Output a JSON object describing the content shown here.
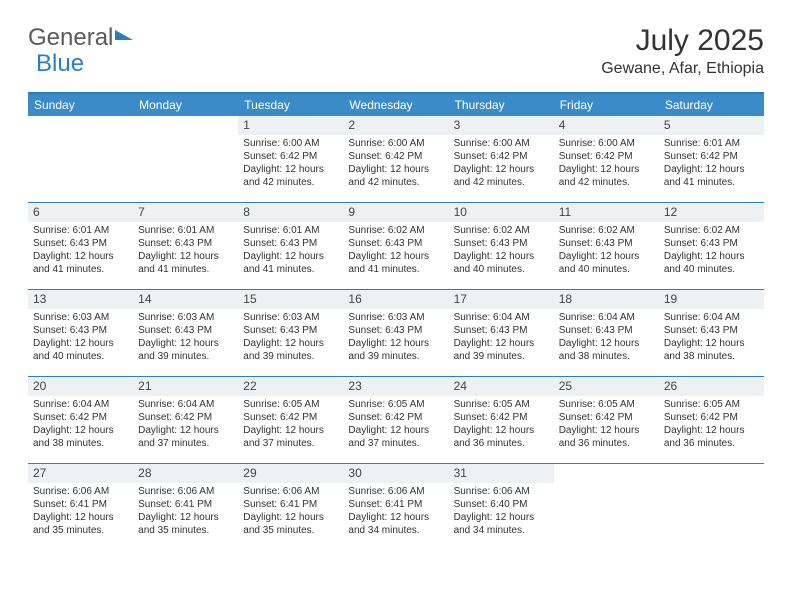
{
  "brand": {
    "part1": "General",
    "part2": "Blue"
  },
  "title": "July 2025",
  "location": "Gewane, Afar, Ethiopia",
  "header_bg": "#3b8bc9",
  "border_color": "#2a7fbf",
  "day_bg": "#eef1f4",
  "text_color": "#333333",
  "weekdays": [
    "Sunday",
    "Monday",
    "Tuesday",
    "Wednesday",
    "Thursday",
    "Friday",
    "Saturday"
  ],
  "cells": [
    {
      "day": "",
      "sunrise": "",
      "sunset": "",
      "daylight": ""
    },
    {
      "day": "",
      "sunrise": "",
      "sunset": "",
      "daylight": ""
    },
    {
      "day": "1",
      "sunrise": "Sunrise: 6:00 AM",
      "sunset": "Sunset: 6:42 PM",
      "daylight": "Daylight: 12 hours and 42 minutes."
    },
    {
      "day": "2",
      "sunrise": "Sunrise: 6:00 AM",
      "sunset": "Sunset: 6:42 PM",
      "daylight": "Daylight: 12 hours and 42 minutes."
    },
    {
      "day": "3",
      "sunrise": "Sunrise: 6:00 AM",
      "sunset": "Sunset: 6:42 PM",
      "daylight": "Daylight: 12 hours and 42 minutes."
    },
    {
      "day": "4",
      "sunrise": "Sunrise: 6:00 AM",
      "sunset": "Sunset: 6:42 PM",
      "daylight": "Daylight: 12 hours and 42 minutes."
    },
    {
      "day": "5",
      "sunrise": "Sunrise: 6:01 AM",
      "sunset": "Sunset: 6:42 PM",
      "daylight": "Daylight: 12 hours and 41 minutes."
    },
    {
      "day": "6",
      "sunrise": "Sunrise: 6:01 AM",
      "sunset": "Sunset: 6:43 PM",
      "daylight": "Daylight: 12 hours and 41 minutes."
    },
    {
      "day": "7",
      "sunrise": "Sunrise: 6:01 AM",
      "sunset": "Sunset: 6:43 PM",
      "daylight": "Daylight: 12 hours and 41 minutes."
    },
    {
      "day": "8",
      "sunrise": "Sunrise: 6:01 AM",
      "sunset": "Sunset: 6:43 PM",
      "daylight": "Daylight: 12 hours and 41 minutes."
    },
    {
      "day": "9",
      "sunrise": "Sunrise: 6:02 AM",
      "sunset": "Sunset: 6:43 PM",
      "daylight": "Daylight: 12 hours and 41 minutes."
    },
    {
      "day": "10",
      "sunrise": "Sunrise: 6:02 AM",
      "sunset": "Sunset: 6:43 PM",
      "daylight": "Daylight: 12 hours and 40 minutes."
    },
    {
      "day": "11",
      "sunrise": "Sunrise: 6:02 AM",
      "sunset": "Sunset: 6:43 PM",
      "daylight": "Daylight: 12 hours and 40 minutes."
    },
    {
      "day": "12",
      "sunrise": "Sunrise: 6:02 AM",
      "sunset": "Sunset: 6:43 PM",
      "daylight": "Daylight: 12 hours and 40 minutes."
    },
    {
      "day": "13",
      "sunrise": "Sunrise: 6:03 AM",
      "sunset": "Sunset: 6:43 PM",
      "daylight": "Daylight: 12 hours and 40 minutes."
    },
    {
      "day": "14",
      "sunrise": "Sunrise: 6:03 AM",
      "sunset": "Sunset: 6:43 PM",
      "daylight": "Daylight: 12 hours and 39 minutes."
    },
    {
      "day": "15",
      "sunrise": "Sunrise: 6:03 AM",
      "sunset": "Sunset: 6:43 PM",
      "daylight": "Daylight: 12 hours and 39 minutes."
    },
    {
      "day": "16",
      "sunrise": "Sunrise: 6:03 AM",
      "sunset": "Sunset: 6:43 PM",
      "daylight": "Daylight: 12 hours and 39 minutes."
    },
    {
      "day": "17",
      "sunrise": "Sunrise: 6:04 AM",
      "sunset": "Sunset: 6:43 PM",
      "daylight": "Daylight: 12 hours and 39 minutes."
    },
    {
      "day": "18",
      "sunrise": "Sunrise: 6:04 AM",
      "sunset": "Sunset: 6:43 PM",
      "daylight": "Daylight: 12 hours and 38 minutes."
    },
    {
      "day": "19",
      "sunrise": "Sunrise: 6:04 AM",
      "sunset": "Sunset: 6:43 PM",
      "daylight": "Daylight: 12 hours and 38 minutes."
    },
    {
      "day": "20",
      "sunrise": "Sunrise: 6:04 AM",
      "sunset": "Sunset: 6:42 PM",
      "daylight": "Daylight: 12 hours and 38 minutes."
    },
    {
      "day": "21",
      "sunrise": "Sunrise: 6:04 AM",
      "sunset": "Sunset: 6:42 PM",
      "daylight": "Daylight: 12 hours and 37 minutes."
    },
    {
      "day": "22",
      "sunrise": "Sunrise: 6:05 AM",
      "sunset": "Sunset: 6:42 PM",
      "daylight": "Daylight: 12 hours and 37 minutes."
    },
    {
      "day": "23",
      "sunrise": "Sunrise: 6:05 AM",
      "sunset": "Sunset: 6:42 PM",
      "daylight": "Daylight: 12 hours and 37 minutes."
    },
    {
      "day": "24",
      "sunrise": "Sunrise: 6:05 AM",
      "sunset": "Sunset: 6:42 PM",
      "daylight": "Daylight: 12 hours and 36 minutes."
    },
    {
      "day": "25",
      "sunrise": "Sunrise: 6:05 AM",
      "sunset": "Sunset: 6:42 PM",
      "daylight": "Daylight: 12 hours and 36 minutes."
    },
    {
      "day": "26",
      "sunrise": "Sunrise: 6:05 AM",
      "sunset": "Sunset: 6:42 PM",
      "daylight": "Daylight: 12 hours and 36 minutes."
    },
    {
      "day": "27",
      "sunrise": "Sunrise: 6:06 AM",
      "sunset": "Sunset: 6:41 PM",
      "daylight": "Daylight: 12 hours and 35 minutes."
    },
    {
      "day": "28",
      "sunrise": "Sunrise: 6:06 AM",
      "sunset": "Sunset: 6:41 PM",
      "daylight": "Daylight: 12 hours and 35 minutes."
    },
    {
      "day": "29",
      "sunrise": "Sunrise: 6:06 AM",
      "sunset": "Sunset: 6:41 PM",
      "daylight": "Daylight: 12 hours and 35 minutes."
    },
    {
      "day": "30",
      "sunrise": "Sunrise: 6:06 AM",
      "sunset": "Sunset: 6:41 PM",
      "daylight": "Daylight: 12 hours and 34 minutes."
    },
    {
      "day": "31",
      "sunrise": "Sunrise: 6:06 AM",
      "sunset": "Sunset: 6:40 PM",
      "daylight": "Daylight: 12 hours and 34 minutes."
    },
    {
      "day": "",
      "sunrise": "",
      "sunset": "",
      "daylight": ""
    },
    {
      "day": "",
      "sunrise": "",
      "sunset": "",
      "daylight": ""
    }
  ]
}
